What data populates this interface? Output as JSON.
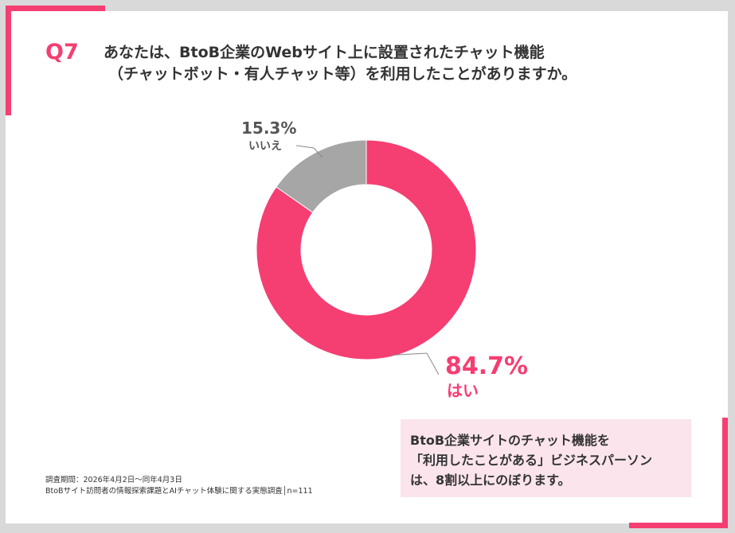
{
  "question": {
    "number": "Q7",
    "line1": "あなたは、BtoB企業のWebサイト上に設置されたチャット機能",
    "line2": "（チャットボット・有人チャット等）を利用したことがありますか。"
  },
  "chart_data": {
    "type": "pie",
    "style": "donut",
    "slices": [
      {
        "label": "はい",
        "value": 84.7,
        "value_label": "84.7%",
        "color": "#f53e72"
      },
      {
        "label": "いいえ",
        "value": 15.3,
        "value_label": "15.3%",
        "color": "#a6a6a6"
      }
    ]
  },
  "note": {
    "lines": [
      "BtoB企業サイトのチャット機能を",
      "「利用したことがある」ビジネスパーソン",
      "は、8割以上にのぼります。"
    ]
  },
  "footer": {
    "period": "調査期間：2026年4月2日〜同年4月3日",
    "survey": "BtoBサイト訪問者の情報探索課題とAIチャット体験に関する実態調査│n=111"
  },
  "colors": {
    "accent": "#f53e72",
    "gray_slice": "#a6a6a6",
    "note_bg": "#fbe4ec",
    "text": "#333333"
  }
}
